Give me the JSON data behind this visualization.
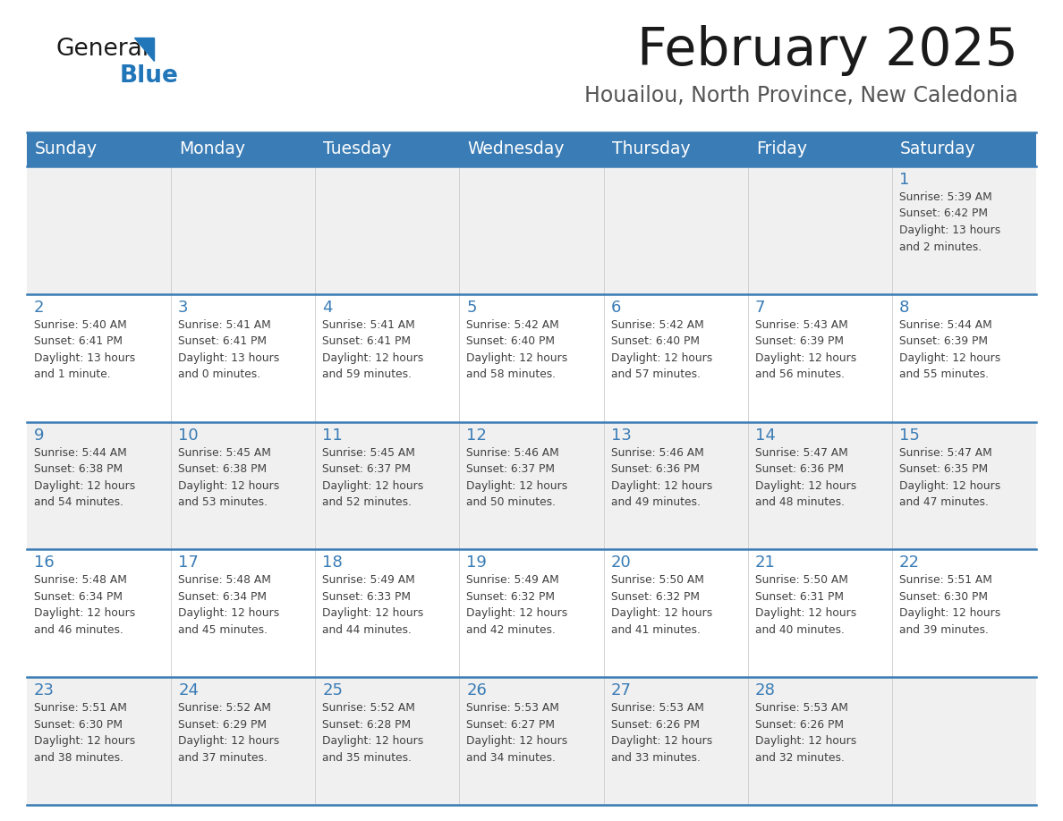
{
  "title": "February 2025",
  "subtitle": "Houailou, North Province, New Caledonia",
  "days_of_week": [
    "Sunday",
    "Monday",
    "Tuesday",
    "Wednesday",
    "Thursday",
    "Friday",
    "Saturday"
  ],
  "header_bg": "#3a7cb5",
  "header_text": "#ffffff",
  "row_bg_odd": "#f0f0f0",
  "row_bg_even": "#ffffff",
  "separator_color": "#3a7cb5",
  "day_number_color": "#3a7cb5",
  "cell_text_color": "#404040",
  "title_color": "#1a1a1a",
  "subtitle_color": "#555555",
  "logo_general_color": "#1a1a1a",
  "logo_blue_color": "#2176b9",
  "calendar_data": [
    [
      null,
      null,
      null,
      null,
      null,
      null,
      {
        "day": 1,
        "sunrise": "5:39 AM",
        "sunset": "6:42 PM",
        "daylight": "13 hours\nand 2 minutes."
      }
    ],
    [
      {
        "day": 2,
        "sunrise": "5:40 AM",
        "sunset": "6:41 PM",
        "daylight": "13 hours\nand 1 minute."
      },
      {
        "day": 3,
        "sunrise": "5:41 AM",
        "sunset": "6:41 PM",
        "daylight": "13 hours\nand 0 minutes."
      },
      {
        "day": 4,
        "sunrise": "5:41 AM",
        "sunset": "6:41 PM",
        "daylight": "12 hours\nand 59 minutes."
      },
      {
        "day": 5,
        "sunrise": "5:42 AM",
        "sunset": "6:40 PM",
        "daylight": "12 hours\nand 58 minutes."
      },
      {
        "day": 6,
        "sunrise": "5:42 AM",
        "sunset": "6:40 PM",
        "daylight": "12 hours\nand 57 minutes."
      },
      {
        "day": 7,
        "sunrise": "5:43 AM",
        "sunset": "6:39 PM",
        "daylight": "12 hours\nand 56 minutes."
      },
      {
        "day": 8,
        "sunrise": "5:44 AM",
        "sunset": "6:39 PM",
        "daylight": "12 hours\nand 55 minutes."
      }
    ],
    [
      {
        "day": 9,
        "sunrise": "5:44 AM",
        "sunset": "6:38 PM",
        "daylight": "12 hours\nand 54 minutes."
      },
      {
        "day": 10,
        "sunrise": "5:45 AM",
        "sunset": "6:38 PM",
        "daylight": "12 hours\nand 53 minutes."
      },
      {
        "day": 11,
        "sunrise": "5:45 AM",
        "sunset": "6:37 PM",
        "daylight": "12 hours\nand 52 minutes."
      },
      {
        "day": 12,
        "sunrise": "5:46 AM",
        "sunset": "6:37 PM",
        "daylight": "12 hours\nand 50 minutes."
      },
      {
        "day": 13,
        "sunrise": "5:46 AM",
        "sunset": "6:36 PM",
        "daylight": "12 hours\nand 49 minutes."
      },
      {
        "day": 14,
        "sunrise": "5:47 AM",
        "sunset": "6:36 PM",
        "daylight": "12 hours\nand 48 minutes."
      },
      {
        "day": 15,
        "sunrise": "5:47 AM",
        "sunset": "6:35 PM",
        "daylight": "12 hours\nand 47 minutes."
      }
    ],
    [
      {
        "day": 16,
        "sunrise": "5:48 AM",
        "sunset": "6:34 PM",
        "daylight": "12 hours\nand 46 minutes."
      },
      {
        "day": 17,
        "sunrise": "5:48 AM",
        "sunset": "6:34 PM",
        "daylight": "12 hours\nand 45 minutes."
      },
      {
        "day": 18,
        "sunrise": "5:49 AM",
        "sunset": "6:33 PM",
        "daylight": "12 hours\nand 44 minutes."
      },
      {
        "day": 19,
        "sunrise": "5:49 AM",
        "sunset": "6:32 PM",
        "daylight": "12 hours\nand 42 minutes."
      },
      {
        "day": 20,
        "sunrise": "5:50 AM",
        "sunset": "6:32 PM",
        "daylight": "12 hours\nand 41 minutes."
      },
      {
        "day": 21,
        "sunrise": "5:50 AM",
        "sunset": "6:31 PM",
        "daylight": "12 hours\nand 40 minutes."
      },
      {
        "day": 22,
        "sunrise": "5:51 AM",
        "sunset": "6:30 PM",
        "daylight": "12 hours\nand 39 minutes."
      }
    ],
    [
      {
        "day": 23,
        "sunrise": "5:51 AM",
        "sunset": "6:30 PM",
        "daylight": "12 hours\nand 38 minutes."
      },
      {
        "day": 24,
        "sunrise": "5:52 AM",
        "sunset": "6:29 PM",
        "daylight": "12 hours\nand 37 minutes."
      },
      {
        "day": 25,
        "sunrise": "5:52 AM",
        "sunset": "6:28 PM",
        "daylight": "12 hours\nand 35 minutes."
      },
      {
        "day": 26,
        "sunrise": "5:53 AM",
        "sunset": "6:27 PM",
        "daylight": "12 hours\nand 34 minutes."
      },
      {
        "day": 27,
        "sunrise": "5:53 AM",
        "sunset": "6:26 PM",
        "daylight": "12 hours\nand 33 minutes."
      },
      {
        "day": 28,
        "sunrise": "5:53 AM",
        "sunset": "6:26 PM",
        "daylight": "12 hours\nand 32 minutes."
      },
      null
    ]
  ]
}
